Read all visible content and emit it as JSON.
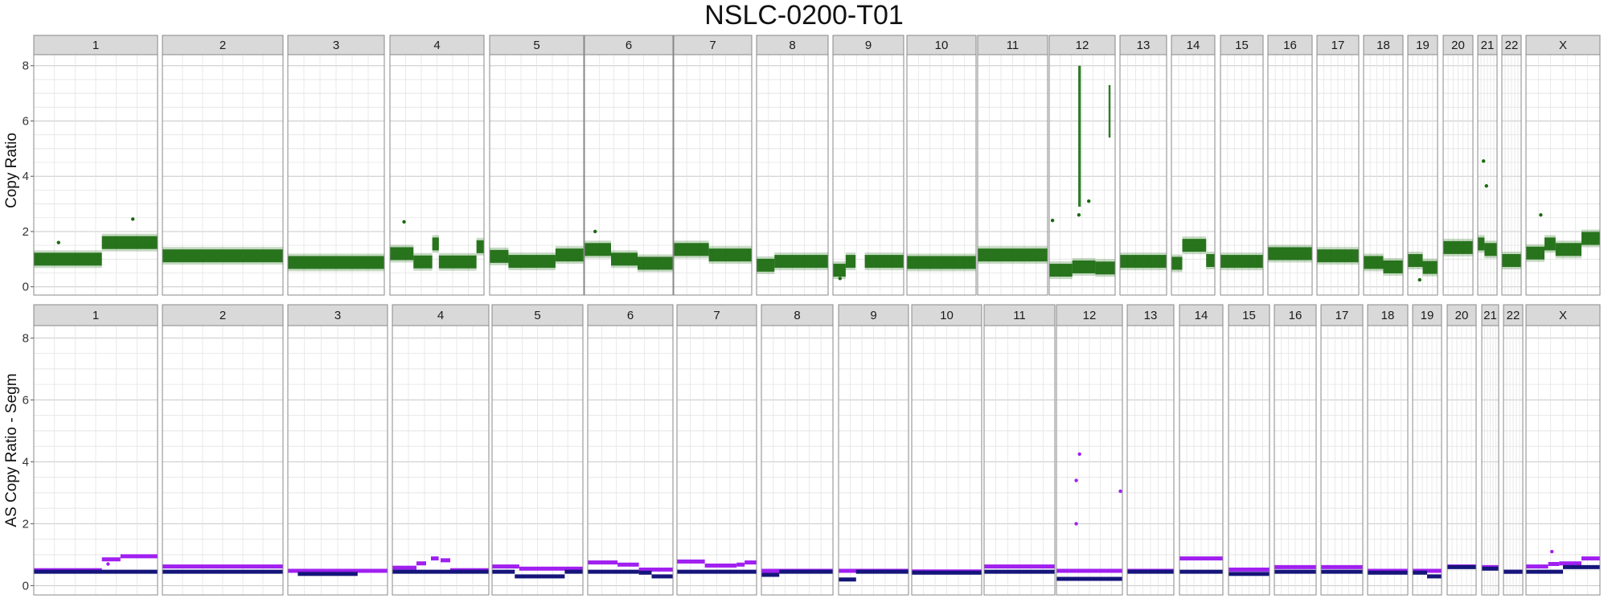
{
  "title": "NSLC-0200-T01",
  "colors": {
    "copy_ratio_points": "#1a6b0f",
    "allele_major": "#a020f0",
    "allele_minor": "#15157a",
    "strip_fill": "#d9d9d9",
    "grid_major": "#c8c8c8",
    "grid_minor": "#e4e4e4",
    "panel_border": "#888888"
  },
  "chart_data": [
    {
      "type": "scatter",
      "title": "NSLC-0200-T01",
      "ylabel": "Copy Ratio",
      "xlabel": "",
      "ylim": [
        -0.3,
        8.4
      ],
      "yticks": [
        0,
        2,
        4,
        6,
        8
      ],
      "grid": true,
      "facets": [
        "1",
        "2",
        "3",
        "4",
        "5",
        "6",
        "7",
        "8",
        "9",
        "10",
        "11",
        "12",
        "13",
        "14",
        "15",
        "16",
        "17",
        "18",
        "19",
        "20",
        "21",
        "22",
        "X"
      ],
      "series": [
        {
          "segments": {
            "1": [
              [
                0,
                0.55,
                1.0
              ],
              [
                0.55,
                1.0,
                1.6
              ]
            ],
            "2": [
              [
                0,
                1,
                1.12
              ]
            ],
            "3": [
              [
                0,
                1,
                0.88
              ]
            ],
            "4": [
              [
                0,
                0.25,
                1.2
              ],
              [
                0.25,
                0.45,
                0.9
              ],
              [
                0.45,
                0.52,
                1.55
              ],
              [
                0.52,
                0.92,
                0.9
              ],
              [
                0.92,
                1,
                1.45
              ]
            ],
            "5": [
              [
                0,
                0.2,
                1.1
              ],
              [
                0.2,
                0.7,
                0.92
              ],
              [
                0.7,
                1,
                1.15
              ]
            ],
            "6": [
              [
                0,
                0.3,
                1.35
              ],
              [
                0.3,
                0.6,
                1.0
              ],
              [
                0.6,
                1,
                0.85
              ]
            ],
            "7": [
              [
                0,
                0.45,
                1.35
              ],
              [
                0.45,
                1,
                1.15
              ]
            ],
            "8": [
              [
                0,
                0.25,
                0.78
              ],
              [
                0.25,
                1,
                0.92
              ]
            ],
            "9": [
              [
                0,
                0.18,
                0.6
              ],
              [
                0.18,
                0.32,
                0.92
              ],
              [
                0.45,
                1,
                0.92
              ]
            ],
            "10": [
              [
                0,
                1,
                0.88
              ]
            ],
            "11": [
              [
                0,
                1,
                1.15
              ]
            ],
            "12": [
              [
                0,
                0.35,
                0.6
              ],
              [
                0.35,
                0.7,
                0.72
              ],
              [
                0.7,
                1,
                0.68
              ]
            ],
            "13": [
              [
                0,
                1,
                0.92
              ]
            ],
            "14": [
              [
                0,
                0.25,
                0.85
              ],
              [
                0.25,
                0.8,
                1.5
              ],
              [
                0.8,
                1,
                0.95
              ]
            ],
            "15": [
              [
                0,
                1,
                0.92
              ]
            ],
            "16": [
              [
                0,
                1,
                1.2
              ]
            ],
            "17": [
              [
                0,
                1,
                1.12
              ]
            ],
            "18": [
              [
                0,
                0.5,
                0.88
              ],
              [
                0.5,
                1,
                0.72
              ]
            ],
            "19": [
              [
                0,
                0.5,
                0.95
              ],
              [
                0.5,
                1,
                0.7
              ]
            ],
            "20": [
              [
                0,
                1,
                1.42
              ]
            ],
            "21": [
              [
                0,
                0.35,
                1.55
              ],
              [
                0.35,
                1,
                1.35
              ]
            ],
            "22": [
              [
                0,
                1,
                0.95
              ]
            ],
            "X": [
              [
                0,
                0.25,
                1.22
              ],
              [
                0.25,
                0.4,
                1.55
              ],
              [
                0.4,
                0.75,
                1.35
              ],
              [
                0.75,
                1,
                1.75
              ]
            ]
          },
          "outliers": [
            [
              "1",
              0.2,
              1.6
            ],
            [
              "1",
              0.8,
              2.45
            ],
            [
              "4",
              0.15,
              2.35
            ],
            [
              "6",
              0.12,
              2.0
            ],
            [
              "12",
              0.05,
              2.4
            ],
            [
              "12",
              0.6,
              3.1
            ],
            [
              "12",
              0.45,
              2.6
            ],
            [
              "21",
              0.3,
              4.55
            ],
            [
              "21",
              0.45,
              3.65
            ],
            [
              "X",
              0.2,
              2.6
            ],
            [
              "9",
              0.1,
              0.3
            ],
            [
              "19",
              0.4,
              0.25
            ]
          ],
          "amplification_bands": [
            [
              "12",
              0.44,
              0.48,
              2.9,
              8.0
            ],
            [
              "12",
              0.9,
              0.93,
              5.4,
              7.3
            ]
          ]
        }
      ]
    },
    {
      "type": "scatter",
      "ylabel": "AS Copy Ratio - Segm",
      "xlabel": "",
      "ylim": [
        -0.3,
        8.4
      ],
      "yticks": [
        0,
        2,
        4,
        6,
        8
      ],
      "grid": true,
      "facets": [
        "1",
        "2",
        "3",
        "4",
        "5",
        "6",
        "7",
        "8",
        "9",
        "10",
        "11",
        "12",
        "13",
        "14",
        "15",
        "16",
        "17",
        "18",
        "19",
        "20",
        "21",
        "22",
        "X"
      ],
      "series": [
        {
          "role": "major",
          "segments": {
            "1": [
              [
                0,
                0.55,
                0.5
              ],
              [
                0.55,
                0.7,
                0.85
              ],
              [
                0.7,
                1,
                0.95
              ]
            ],
            "2": [
              [
                0,
                1,
                0.62
              ]
            ],
            "3": [
              [
                0,
                1,
                0.48
              ]
            ],
            "4": [
              [
                0,
                0.25,
                0.58
              ],
              [
                0.25,
                0.35,
                0.72
              ],
              [
                0.4,
                0.48,
                0.88
              ],
              [
                0.5,
                0.6,
                0.82
              ],
              [
                0.6,
                1,
                0.5
              ]
            ],
            "5": [
              [
                0,
                0.3,
                0.62
              ],
              [
                0.3,
                1,
                0.55
              ]
            ],
            "6": [
              [
                0,
                0.35,
                0.75
              ],
              [
                0.35,
                0.6,
                0.68
              ],
              [
                0.6,
                1,
                0.52
              ]
            ],
            "7": [
              [
                0,
                0.35,
                0.78
              ],
              [
                0.35,
                0.75,
                0.65
              ],
              [
                0.75,
                0.85,
                0.68
              ],
              [
                0.85,
                1,
                0.75
              ]
            ],
            "8": [
              [
                0,
                1,
                0.48
              ]
            ],
            "9": [
              [
                0,
                1,
                0.48
              ]
            ],
            "10": [
              [
                0,
                1,
                0.46
              ]
            ],
            "11": [
              [
                0,
                1,
                0.62
              ]
            ],
            "12": [
              [
                0,
                1,
                0.48
              ]
            ],
            "13": [
              [
                0,
                1,
                0.48
              ]
            ],
            "14": [
              [
                0,
                1,
                0.88
              ]
            ],
            "15": [
              [
                0,
                1,
                0.52
              ]
            ],
            "16": [
              [
                0,
                1,
                0.6
              ]
            ],
            "17": [
              [
                0,
                1,
                0.6
              ]
            ],
            "18": [
              [
                0,
                1,
                0.48
              ]
            ],
            "19": [
              [
                0,
                1,
                0.48
              ]
            ],
            "20": [
              [
                0,
                1,
                0.62
              ]
            ],
            "21": [
              [
                0,
                1,
                0.6
              ]
            ],
            "22": [
              [
                0,
                1,
                0.45
              ]
            ],
            "X": [
              [
                0,
                0.3,
                0.62
              ],
              [
                0.3,
                0.45,
                0.7
              ],
              [
                0.45,
                0.75,
                0.72
              ],
              [
                0.75,
                1,
                0.88
              ]
            ]
          },
          "outliers": [
            [
              "12",
              0.35,
              4.25
            ],
            [
              "12",
              0.3,
              3.4
            ],
            [
              "12",
              0.3,
              2.0
            ],
            [
              "12",
              0.97,
              3.05
            ],
            [
              "X",
              0.35,
              1.1
            ],
            [
              "1",
              0.6,
              0.7
            ]
          ]
        },
        {
          "role": "minor",
          "segments": {
            "1": [
              [
                0,
                1,
                0.45
              ]
            ],
            "2": [
              [
                0,
                1,
                0.45
              ]
            ],
            "3": [
              [
                0.1,
                0.7,
                0.38
              ]
            ],
            "4": [
              [
                0,
                1,
                0.45
              ]
            ],
            "5": [
              [
                0,
                0.25,
                0.45
              ],
              [
                0.25,
                0.8,
                0.3
              ],
              [
                0.8,
                1,
                0.45
              ]
            ],
            "6": [
              [
                0,
                0.6,
                0.45
              ],
              [
                0.6,
                0.75,
                0.42
              ],
              [
                0.75,
                1,
                0.3
              ]
            ],
            "7": [
              [
                0,
                1,
                0.45
              ]
            ],
            "8": [
              [
                0,
                0.25,
                0.35
              ],
              [
                0.25,
                1,
                0.45
              ]
            ],
            "9": [
              [
                0,
                0.25,
                0.2
              ],
              [
                0.25,
                1,
                0.45
              ]
            ],
            "10": [
              [
                0,
                1,
                0.42
              ]
            ],
            "11": [
              [
                0,
                1,
                0.45
              ]
            ],
            "12": [
              [
                0,
                1,
                0.22
              ]
            ],
            "13": [
              [
                0,
                1,
                0.45
              ]
            ],
            "14": [
              [
                0,
                1,
                0.45
              ]
            ],
            "15": [
              [
                0,
                1,
                0.38
              ]
            ],
            "16": [
              [
                0,
                1,
                0.45
              ]
            ],
            "17": [
              [
                0,
                1,
                0.45
              ]
            ],
            "18": [
              [
                0,
                1,
                0.42
              ]
            ],
            "19": [
              [
                0,
                0.5,
                0.42
              ],
              [
                0.5,
                1,
                0.3
              ]
            ],
            "20": [
              [
                0,
                1,
                0.6
              ]
            ],
            "21": [
              [
                0,
                1,
                0.55
              ]
            ],
            "22": [
              [
                0,
                1,
                0.45
              ]
            ],
            "X": [
              [
                0,
                0.5,
                0.45
              ],
              [
                0.5,
                1,
                0.6
              ]
            ]
          },
          "outliers": []
        }
      ]
    }
  ]
}
